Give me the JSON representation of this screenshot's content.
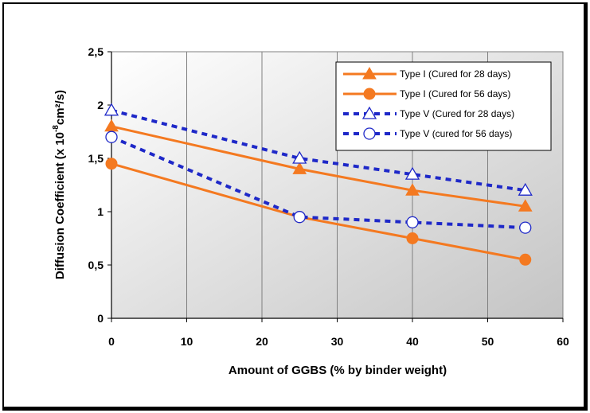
{
  "chart_data": {
    "type": "line",
    "xlabel": "Amount of GGBS (% by binder weight)",
    "ylabel": "Diffusion Coefficient (x 10",
    "ylabel_exponent": "-8",
    "ylabel_unit": "cm²/s)",
    "xlim": [
      0,
      60
    ],
    "ylim": [
      0,
      2.5
    ],
    "x_ticks": [
      "0",
      "10",
      "20",
      "30",
      "40",
      "50",
      "60"
    ],
    "y_ticks": [
      "0",
      "0,5",
      "1",
      "1,5",
      "2",
      "2,5"
    ],
    "grid": "vertical",
    "legend_position": "top-right",
    "series": [
      {
        "name": "Type I (Cured for 28 days)",
        "color": "#F47920",
        "line": "solid",
        "marker": "triangle-filled",
        "x": [
          0,
          25,
          40,
          55
        ],
        "y": [
          1.8,
          1.4,
          1.2,
          1.05
        ]
      },
      {
        "name": "Type I (Cured for 56 days)",
        "color": "#F47920",
        "line": "solid",
        "marker": "circle-filled",
        "x": [
          0,
          25,
          40,
          55
        ],
        "y": [
          1.45,
          0.95,
          0.75,
          0.55
        ]
      },
      {
        "name": "Type V (Cured for 28 days)",
        "color": "#1E28C8",
        "line": "dashed",
        "marker": "triangle-open",
        "x": [
          0,
          25,
          40,
          55
        ],
        "y": [
          1.95,
          1.5,
          1.35,
          1.2
        ]
      },
      {
        "name": "Type V (cured for 56 days)",
        "color": "#1E28C8",
        "line": "dashed",
        "marker": "circle-open",
        "x": [
          0,
          25,
          40,
          55
        ],
        "y": [
          1.7,
          0.95,
          0.9,
          0.85
        ]
      }
    ]
  }
}
